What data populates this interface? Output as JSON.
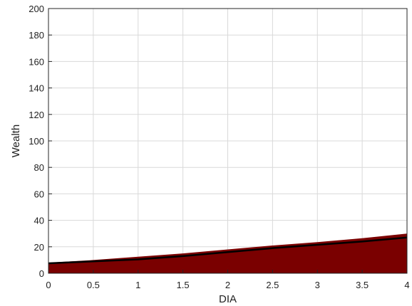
{
  "chart_data": {
    "type": "area",
    "title": "",
    "xlabel": "DIA",
    "ylabel": "Wealth",
    "xlim": [
      0,
      4
    ],
    "ylim": [
      0,
      200
    ],
    "x_ticks": [
      "0",
      "0.5",
      "1",
      "1.5",
      "2",
      "2.5",
      "3",
      "3.5",
      "4"
    ],
    "y_ticks": [
      "0",
      "20",
      "40",
      "60",
      "80",
      "100",
      "120",
      "140",
      "160",
      "180",
      "200"
    ],
    "grid": true,
    "colors": {
      "area_fill": "#7a0000",
      "line": "#000000",
      "grid": "#d9d9d9",
      "axis": "#262626"
    },
    "series": [
      {
        "kind": "area-upper",
        "x": [
          0,
          0.5,
          1,
          1.5,
          2,
          2.5,
          3,
          3.5,
          4
        ],
        "values": [
          8,
          10,
          12.5,
          15,
          18,
          21,
          23.5,
          26.5,
          30
        ]
      },
      {
        "kind": "line",
        "x": [
          0,
          0.5,
          1,
          1.5,
          2,
          2.5,
          3,
          3.5,
          4
        ],
        "values": [
          7.5,
          9,
          10.5,
          13,
          16,
          19,
          21.5,
          24,
          27
        ]
      }
    ]
  }
}
